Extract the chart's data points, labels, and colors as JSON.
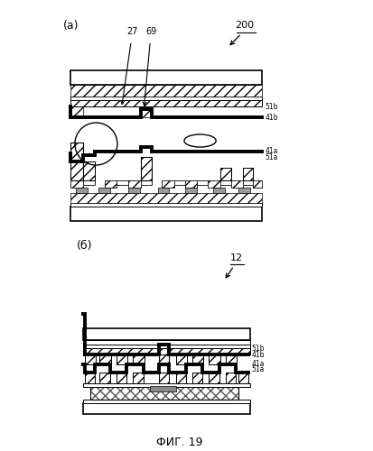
{
  "fig_label": "ФИГ. 19",
  "panel_a_label": "(a)",
  "panel_b_label": "(б)",
  "ref_200": "200",
  "ref_12": "12",
  "ref_27": "27",
  "ref_69": "69",
  "labels_right_a": [
    "41b",
    "51b",
    "41a",
    "51a"
  ],
  "labels_right_b": [
    "41b",
    "51b",
    "41a",
    "51a"
  ],
  "bg_color": "#ffffff"
}
